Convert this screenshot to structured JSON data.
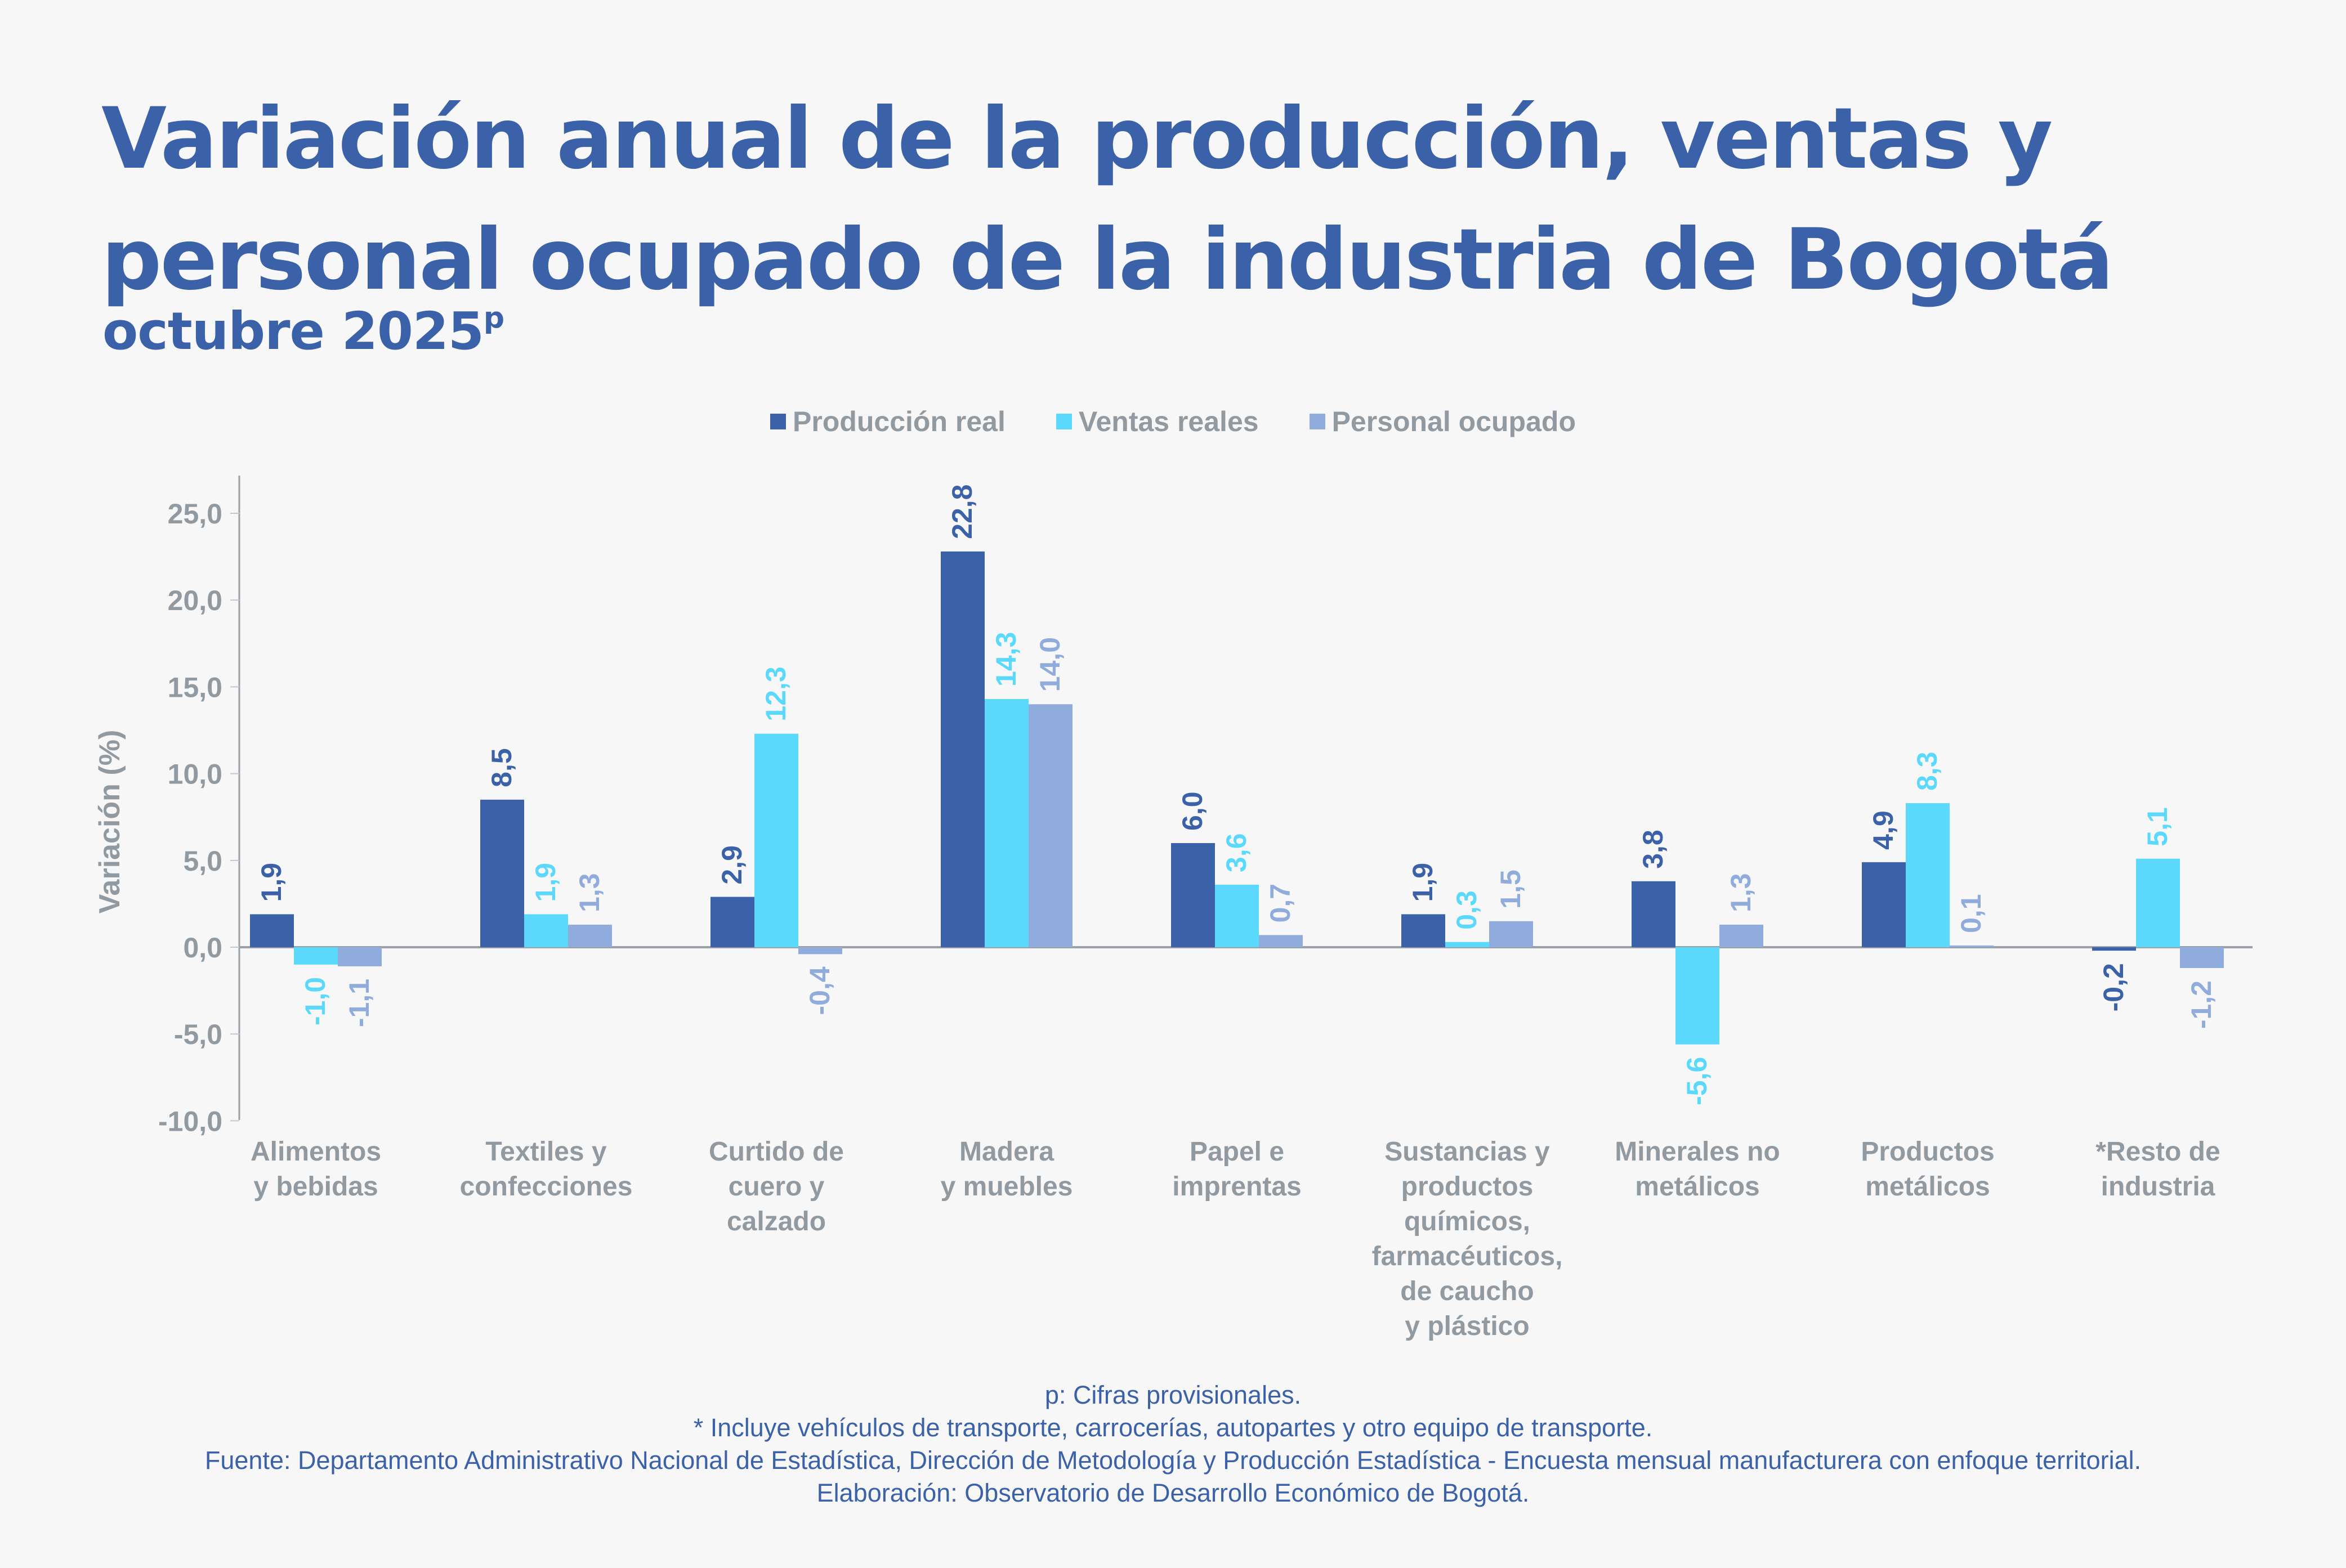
{
  "header": {
    "title_line1": "Variación anual de la producción, ventas y",
    "title_line2": "personal ocupado de la industria de Bogotá",
    "subtitle": "octubre 2025",
    "subtitle_superscript": "p"
  },
  "colors": {
    "title": "#3b62a8",
    "axis_text": "#9199a1",
    "produccion": "#3b62a8",
    "ventas": "#5ad9fc",
    "personal": "#90acdc"
  },
  "chart_data": {
    "type": "bar",
    "title": "Variación anual de la producción, ventas y personal ocupado de la industria de Bogotá",
    "subtitle": "octubre 2025p",
    "xlabel": "",
    "ylabel": "Variación (%)",
    "ylim": [
      -10,
      27
    ],
    "yticks": [
      -10,
      -5,
      0,
      5,
      10,
      15,
      20,
      25
    ],
    "ytick_labels": [
      "-10,0",
      "-5,0",
      "0,0",
      "5,0",
      "10,0",
      "15,0",
      "20,0",
      "25,0"
    ],
    "grid": false,
    "legend_position": "top-center",
    "categories": [
      [
        "Alimentos",
        "y bebidas"
      ],
      [
        "Textiles y",
        "confecciones"
      ],
      [
        "Curtido de",
        "cuero y",
        "calzado"
      ],
      [
        "Madera",
        "y muebles"
      ],
      [
        "Papel e",
        "imprentas"
      ],
      [
        "Sustancias y",
        "productos",
        "químicos,",
        "farmacéuticos,",
        "de caucho",
        "y plástico"
      ],
      [
        "Minerales no",
        "metálicos"
      ],
      [
        "Productos",
        "metálicos"
      ],
      [
        "*Resto de",
        "industria"
      ]
    ],
    "series": [
      {
        "name": "Producción real",
        "color": "#3b62a8",
        "values": [
          1.9,
          8.5,
          2.9,
          22.8,
          6.0,
          1.9,
          3.8,
          4.9,
          -0.2
        ],
        "labels": [
          "1,9",
          "8,5",
          "2,9",
          "22,8",
          "6,0",
          "1,9",
          "3,8",
          "4,9",
          "-0,2"
        ]
      },
      {
        "name": "Ventas reales",
        "color": "#5ad9fc",
        "values": [
          -1.0,
          1.9,
          12.3,
          14.3,
          3.6,
          0.3,
          -5.6,
          8.3,
          5.1
        ],
        "labels": [
          "-1,0",
          "1,9",
          "12,3",
          "14,3",
          "3,6",
          "0,3",
          "-5,6",
          "8,3",
          "5,1"
        ]
      },
      {
        "name": "Personal ocupado",
        "color": "#90acdc",
        "values": [
          -1.1,
          1.3,
          -0.4,
          14.0,
          0.7,
          1.5,
          1.3,
          0.1,
          -1.2
        ],
        "labels": [
          "-1,1",
          "1,3",
          "-0,4",
          "14,0",
          "0,7",
          "1,5",
          "1,3",
          "0,1",
          "-1,2"
        ]
      }
    ]
  },
  "footer": {
    "note_provisional": "p: Cifras provisionales.",
    "note_asterisk": "*  Incluye vehículos de transporte, carrocerías, autopartes y otro equipo de transporte.",
    "source": "Fuente: Departamento Administrativo Nacional de Estadística, Dirección de Metodología y Producción Estadística - Encuesta mensual manufacturera con enfoque territorial.",
    "elaboration": "Elaboración: Observatorio de Desarrollo Económico de Bogotá."
  }
}
